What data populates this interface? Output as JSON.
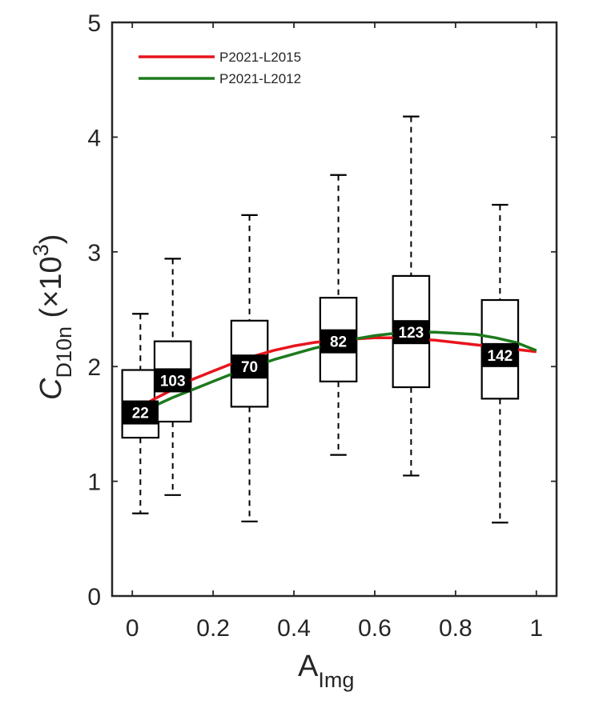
{
  "chart_data": {
    "type": "box",
    "title": "",
    "xlabel": {
      "main": "A",
      "sub": "Img"
    },
    "ylabel": {
      "main": "C",
      "sub": "D10n",
      "paren_open": " (",
      "times": "×",
      "base": "10",
      "exp": "3",
      "paren_close": ")"
    },
    "xlim": [
      -0.05,
      1.05
    ],
    "ylim": [
      0,
      5
    ],
    "xticks": [
      0,
      0.2,
      0.4,
      0.6,
      0.8,
      1
    ],
    "xtick_labels": [
      "0",
      "0.2",
      "0.4",
      "0.6",
      "0.8",
      "1"
    ],
    "yticks": [
      0,
      1,
      2,
      3,
      4,
      5
    ],
    "ytick_labels": [
      "0",
      "1",
      "2",
      "3",
      "4",
      "5"
    ],
    "box_width": 0.09,
    "boxes": [
      {
        "x": 0.02,
        "whisker_low": 0.72,
        "q1": 1.38,
        "median": 1.6,
        "q3": 1.97,
        "whisker_high": 2.46,
        "count": "22"
      },
      {
        "x": 0.1,
        "whisker_low": 0.88,
        "q1": 1.52,
        "median": 1.88,
        "q3": 2.22,
        "whisker_high": 2.94,
        "count": "103"
      },
      {
        "x": 0.29,
        "whisker_low": 0.65,
        "q1": 1.65,
        "median": 2.0,
        "q3": 2.4,
        "whisker_high": 3.32,
        "count": "70"
      },
      {
        "x": 0.51,
        "whisker_low": 1.23,
        "q1": 1.87,
        "median": 2.22,
        "q3": 2.6,
        "whisker_high": 3.67,
        "count": "82"
      },
      {
        "x": 0.69,
        "whisker_low": 1.05,
        "q1": 1.82,
        "median": 2.3,
        "q3": 2.79,
        "whisker_high": 4.18,
        "count": "123"
      },
      {
        "x": 0.91,
        "whisker_low": 0.64,
        "q1": 1.72,
        "median": 2.1,
        "q3": 2.58,
        "whisker_high": 3.41,
        "count": "142"
      }
    ],
    "series": [
      {
        "name": "P2021-L2015",
        "color": "#e8141c",
        "x": [
          0.0,
          0.05,
          0.1,
          0.15,
          0.2,
          0.25,
          0.3,
          0.35,
          0.4,
          0.45,
          0.5,
          0.55,
          0.6,
          0.65,
          0.7,
          0.75,
          0.8,
          0.85,
          0.9,
          0.95,
          1.0
        ],
        "values": [
          1.6,
          1.71,
          1.8,
          1.89,
          1.96,
          2.03,
          2.09,
          2.14,
          2.18,
          2.21,
          2.23,
          2.24,
          2.25,
          2.25,
          2.24,
          2.23,
          2.21,
          2.19,
          2.17,
          2.15,
          2.13
        ]
      },
      {
        "name": "P2021-L2012",
        "color": "#1d7a1d",
        "x": [
          0.0,
          0.05,
          0.1,
          0.15,
          0.2,
          0.25,
          0.3,
          0.35,
          0.4,
          0.45,
          0.5,
          0.55,
          0.6,
          0.65,
          0.7,
          0.75,
          0.8,
          0.85,
          0.9,
          0.95,
          1.0
        ],
        "values": [
          1.58,
          1.65,
          1.73,
          1.8,
          1.87,
          1.94,
          2.0,
          2.06,
          2.11,
          2.16,
          2.2,
          2.24,
          2.27,
          2.29,
          2.3,
          2.3,
          2.29,
          2.28,
          2.25,
          2.21,
          2.14
        ]
      }
    ],
    "legend": {
      "position": "top-left",
      "entries": [
        "P2021-L2015",
        "P2021-L2012"
      ]
    },
    "grid": false
  }
}
